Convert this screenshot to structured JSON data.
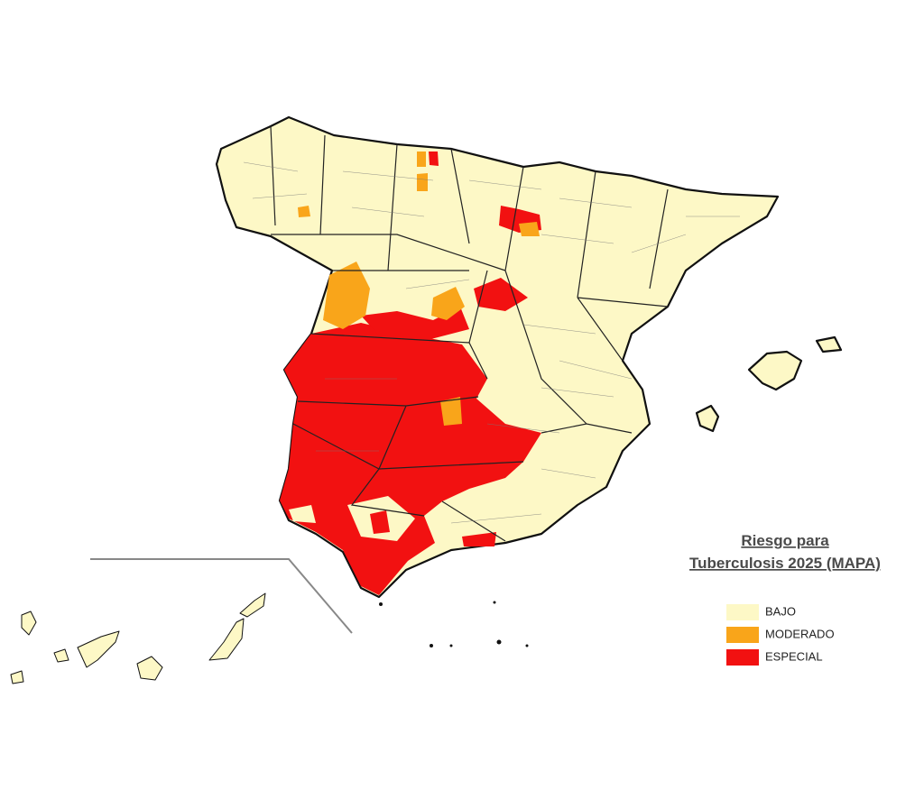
{
  "map": {
    "title": [
      "Riesgo para",
      "Tuberculosis 2025 (MAPA)"
    ],
    "legend": [
      {
        "label": "BAJO",
        "color": "#fdf8c6"
      },
      {
        "label": "MODERADO",
        "color": "#f9a51a"
      },
      {
        "label": "ESPECIAL",
        "color": "#f21111"
      }
    ]
  }
}
